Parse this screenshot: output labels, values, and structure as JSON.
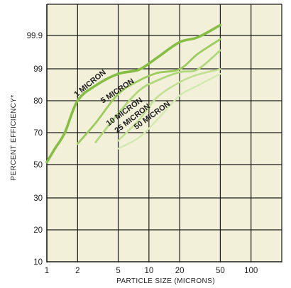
{
  "chart_data": {
    "type": "line",
    "title": "",
    "xlabel": "PARTICLE SIZE (MICRONS)",
    "ylabel": "PERCENT EFFICIENCY*",
    "x_scale": "log",
    "y_scale": "probability",
    "xlim": [
      1,
      200
    ],
    "ylim": [
      10,
      99.99
    ],
    "x_tick_values": [
      1,
      2,
      5,
      10,
      20,
      50,
      100
    ],
    "x_tick_labels": [
      "1",
      "2",
      "5",
      "10",
      "20",
      "50",
      "100"
    ],
    "y_tick_values": [
      10,
      20,
      30,
      50,
      70,
      80,
      99,
      99.9
    ],
    "y_tick_labels": [
      "10",
      "20",
      "30",
      "50",
      "70",
      "80",
      "99",
      "99.9"
    ],
    "grid": true,
    "background_color": "#f3f0d9",
    "grid_color": "#1a1a1a",
    "series": [
      {
        "name": "1 MICRON",
        "color": "#86bd45",
        "x": [
          1.0,
          1.2,
          1.5,
          2.0,
          3.0,
          5.0,
          8.0,
          12.0,
          20.0,
          30.0,
          50.0
        ],
        "y": [
          51.5,
          60,
          70,
          80,
          89,
          96,
          98.5,
          99.3,
          99.72,
          99.85,
          99.93
        ]
      },
      {
        "name": "5 MICRON",
        "color": "#9ccb5e",
        "x": [
          2.0,
          3.0,
          5.0,
          8.0,
          12.0,
          20.0,
          30.0,
          50.0
        ],
        "y": [
          63,
          73,
          84,
          92,
          96.5,
          98.8,
          99.4,
          99.8
        ]
      },
      {
        "name": "10 MICRON",
        "color": "#b1d77c",
        "x": [
          3.0,
          5.0,
          8.0,
          12.0,
          20.0,
          30.0,
          50.0
        ],
        "y": [
          64,
          76,
          86,
          92,
          97,
          98.6,
          99.5
        ]
      },
      {
        "name": "25 MICRON",
        "color": "#c2e094",
        "x": [
          5.0,
          8.0,
          12.0,
          20.0,
          30.0,
          50.0
        ],
        "y": [
          65,
          74,
          82,
          91,
          95.5,
          98.8
        ]
      },
      {
        "name": "50 MICRON",
        "color": "#d3e9b1",
        "x": [
          5.0,
          8.0,
          12.0,
          20.0,
          30.0,
          50.0
        ],
        "y": [
          60,
          67,
          74,
          83,
          89,
          96
        ]
      }
    ]
  }
}
